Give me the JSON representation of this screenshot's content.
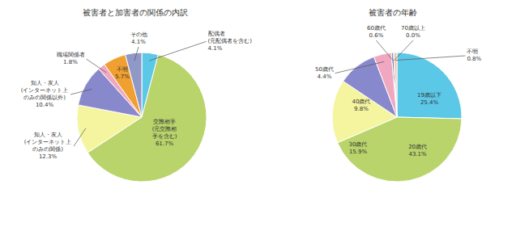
{
  "chart_data": [
    {
      "type": "pie",
      "title": "被害者と加害者の関係の内訳",
      "categories": [
        "配偶者\n(元配偶者を含む)",
        "交際相手\n(元交際相\n手を含む)",
        "知人・友人\n(インターネット上\nのみの関係)",
        "知人・友人\n(インターネット上\nのみの関係以外)",
        "職場関係者",
        "不明",
        "その他"
      ],
      "values": [
        4.1,
        61.7,
        12.3,
        10.4,
        1.8,
        5.7,
        4.1
      ],
      "value_labels": [
        "4.1%",
        "61.7%",
        "12.3%",
        "10.4%",
        "1.8%",
        "5.7%",
        "4.1%"
      ],
      "colors": [
        "#5bc8e8",
        "#b8d46a",
        "#f5f5a0",
        "#8888cc",
        "#f0a8c0",
        "#f0a030",
        "#9098c8"
      ],
      "data_labels": true
    },
    {
      "type": "pie",
      "title": "被害者の年齢",
      "categories": [
        "19歳以下",
        "20歳代",
        "30歳代",
        "40歳代",
        "50歳代",
        "60歳代",
        "70歳以上",
        "不明"
      ],
      "values": [
        25.4,
        43.1,
        15.9,
        9.8,
        4.4,
        0.6,
        0.001,
        0.8
      ],
      "value_labels": [
        "25.4%",
        "43.1%",
        "15.9%",
        "9.8%",
        "4.4%",
        "0.6%",
        "0.0%",
        "0.8%"
      ],
      "colors": [
        "#5bc8e8",
        "#b8d46a",
        "#f5f5a0",
        "#8888cc",
        "#f0a8c0",
        "#8888cc",
        "#f0a030",
        "#f0c8a0"
      ],
      "data_labels": true
    }
  ]
}
